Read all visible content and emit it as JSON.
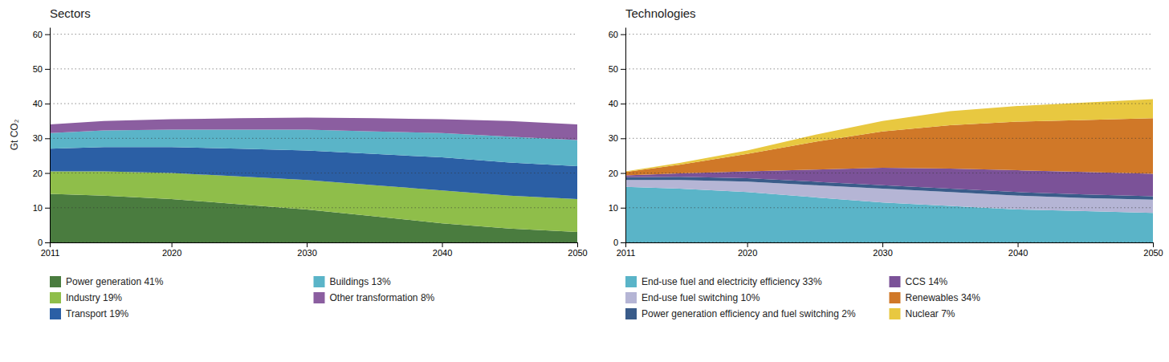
{
  "chart_data": [
    {
      "type": "area",
      "stacked": true,
      "title": "Sectors",
      "ylabel": "Gt CO₂",
      "x": [
        2011,
        2015,
        2020,
        2025,
        2030,
        2035,
        2040,
        2045,
        2050
      ],
      "xlim": [
        2011,
        2050
      ],
      "xticks": [
        2011,
        2020,
        2030,
        2040,
        2050
      ],
      "ylim": [
        0,
        62
      ],
      "yticks": [
        0,
        10,
        20,
        30,
        40,
        50,
        60
      ],
      "grid": true,
      "legend": "bottom",
      "series": [
        {
          "name": "Power generation 41%",
          "color": "#4a7c3f",
          "values": [
            14.0,
            13.5,
            12.5,
            11.0,
            9.5,
            7.5,
            5.5,
            4.0,
            3.0
          ]
        },
        {
          "name": "Industry 19%",
          "color": "#8fbe4a",
          "values": [
            6.5,
            7.0,
            7.5,
            8.0,
            8.5,
            9.0,
            9.5,
            9.5,
            9.5
          ]
        },
        {
          "name": "Transport 19%",
          "color": "#2b5fa5",
          "values": [
            6.5,
            7.0,
            7.5,
            8.0,
            8.5,
            9.0,
            9.5,
            9.5,
            9.5
          ]
        },
        {
          "name": "Buildings 13%",
          "color": "#5ab4c8",
          "values": [
            4.5,
            4.8,
            5.0,
            5.5,
            6.0,
            6.5,
            7.0,
            7.5,
            7.5
          ]
        },
        {
          "name": "Other transformation 8%",
          "color": "#8b5ea0",
          "values": [
            2.5,
            2.7,
            3.0,
            3.3,
            3.5,
            3.8,
            4.0,
            4.5,
            4.5
          ]
        }
      ]
    },
    {
      "type": "area",
      "stacked": true,
      "title": "Technologies",
      "x": [
        2011,
        2015,
        2020,
        2025,
        2030,
        2035,
        2040,
        2045,
        2050
      ],
      "xlim": [
        2011,
        2050
      ],
      "xticks": [
        2011,
        2020,
        2030,
        2040,
        2050
      ],
      "ylim": [
        0,
        62
      ],
      "yticks": [
        0,
        10,
        20,
        30,
        40,
        50,
        60
      ],
      "grid": true,
      "legend": "bottom",
      "series": [
        {
          "name": "End-use fuel and electricity efficiency 33%",
          "color": "#5ab4c8",
          "values": [
            16.0,
            15.5,
            14.5,
            13.0,
            11.5,
            10.5,
            9.5,
            9.0,
            8.5
          ]
        },
        {
          "name": "End-use fuel switching 10%",
          "color": "#b5b5d5",
          "values": [
            2.0,
            2.5,
            3.0,
            3.5,
            4.0,
            4.0,
            4.0,
            3.8,
            3.8
          ]
        },
        {
          "name": "Power generation efficiency and fuel switching 2%",
          "color": "#3a5c8a",
          "values": [
            0.8,
            0.9,
            1.0,
            1.0,
            1.0,
            1.0,
            1.0,
            1.0,
            1.0
          ]
        },
        {
          "name": "CCS 14%",
          "color": "#7b5298",
          "values": [
            0.5,
            1.0,
            2.0,
            3.5,
            5.0,
            5.8,
            6.3,
            6.5,
            6.5
          ]
        },
        {
          "name": "Renewables 34%",
          "color": "#d07828",
          "values": [
            1.0,
            2.5,
            5.0,
            8.0,
            10.5,
            12.5,
            14.0,
            15.0,
            16.0
          ]
        },
        {
          "name": "Nuclear 7%",
          "color": "#e8c840",
          "values": [
            0.2,
            0.5,
            1.0,
            2.0,
            3.0,
            4.0,
            4.5,
            5.0,
            5.5
          ]
        }
      ]
    }
  ]
}
